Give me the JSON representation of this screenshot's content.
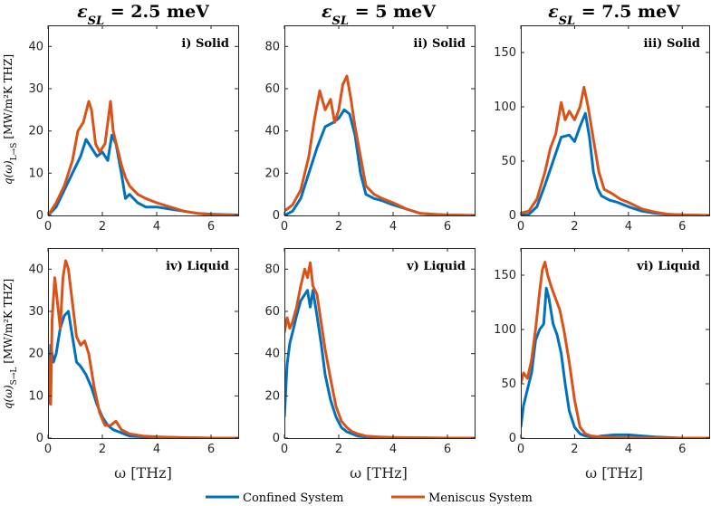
{
  "colors": {
    "confined": "#0072BD",
    "meniscus": "#D95319",
    "axis": "#262626"
  },
  "column_titles": [
    {
      "prefix": "ε",
      "sub": "SL",
      "value": " = 2.5 meV"
    },
    {
      "prefix": "ε",
      "sub": "SL",
      "value": " = 5 meV"
    },
    {
      "prefix": "ε",
      "sub": "SL",
      "value": " = 7.5 meV"
    }
  ],
  "y_labels": {
    "top": {
      "main": "q(ω)",
      "sub": "L→S",
      "unit": "[MW/m²K THZ]"
    },
    "bottom": {
      "main": "q(ω)",
      "sub": "S→L",
      "unit": "[MW/m²K THZ]"
    }
  },
  "x_label": "ω [THz]",
  "legend": {
    "confined": "Confined System",
    "meniscus": "Meniscus System"
  },
  "chart_data": [
    {
      "type": "line",
      "panel": "i) Solid",
      "xlim": [
        0,
        7
      ],
      "ylim": [
        0,
        45
      ],
      "xticks": [
        0,
        2,
        4,
        6
      ],
      "yticks": [
        0,
        10,
        20,
        30,
        40
      ],
      "series": [
        {
          "name": "Confined System",
          "x": [
            0,
            0.3,
            0.6,
            0.9,
            1.2,
            1.4,
            1.6,
            1.8,
            2.0,
            2.2,
            2.35,
            2.5,
            2.7,
            2.85,
            3.0,
            3.3,
            3.6,
            4.0,
            4.5,
            5.0,
            5.5,
            6.0,
            6.5,
            7.0
          ],
          "y": [
            0,
            2,
            6,
            10,
            14,
            18,
            16,
            14,
            15,
            13,
            19,
            17,
            10,
            4,
            5,
            3,
            2,
            2,
            1.5,
            1,
            0.5,
            0.3,
            0.2,
            0.1
          ]
        },
        {
          "name": "Meniscus System",
          "x": [
            0,
            0.3,
            0.6,
            0.9,
            1.1,
            1.3,
            1.5,
            1.6,
            1.75,
            1.9,
            2.1,
            2.3,
            2.4,
            2.55,
            2.7,
            2.85,
            3.0,
            3.3,
            3.6,
            4.0,
            4.5,
            5.0,
            5.5,
            6.0,
            7.0
          ],
          "y": [
            0,
            3,
            7,
            13,
            20,
            22,
            27,
            25,
            17,
            15,
            17,
            27,
            20,
            16,
            12,
            9,
            7,
            5,
            4,
            3,
            2,
            1,
            0.5,
            0.2,
            0
          ]
        }
      ]
    },
    {
      "type": "line",
      "panel": "ii) Solid",
      "xlim": [
        0,
        7
      ],
      "ylim": [
        0,
        90
      ],
      "xticks": [
        0,
        2,
        4,
        6
      ],
      "yticks": [
        0,
        20,
        40,
        60,
        80
      ],
      "series": [
        {
          "name": "Confined System",
          "x": [
            0,
            0.3,
            0.6,
            0.9,
            1.2,
            1.5,
            1.8,
            2.0,
            2.2,
            2.4,
            2.6,
            2.8,
            3.0,
            3.3,
            3.6,
            4.0,
            4.5,
            5.0,
            5.5,
            6.0,
            7.0
          ],
          "y": [
            0,
            2,
            8,
            20,
            32,
            42,
            44,
            46,
            50,
            48,
            38,
            20,
            10,
            8,
            7,
            5,
            3,
            1,
            0.5,
            0.2,
            0
          ]
        },
        {
          "name": "Meniscus System",
          "x": [
            0,
            0.3,
            0.6,
            0.9,
            1.1,
            1.3,
            1.5,
            1.7,
            1.85,
            2.0,
            2.15,
            2.3,
            2.45,
            2.6,
            2.8,
            3.0,
            3.3,
            3.6,
            4.0,
            4.5,
            5.0,
            5.5,
            6.0,
            7.0
          ],
          "y": [
            2,
            5,
            12,
            28,
            45,
            59,
            50,
            55,
            44,
            50,
            62,
            66,
            55,
            42,
            28,
            14,
            10,
            8,
            6,
            3,
            1,
            0.5,
            0.2,
            0
          ]
        }
      ]
    },
    {
      "type": "line",
      "panel": "iii) Solid",
      "xlim": [
        0,
        7
      ],
      "ylim": [
        0,
        175
      ],
      "xticks": [
        0,
        2,
        4,
        6
      ],
      "yticks": [
        0,
        50,
        100,
        150
      ],
      "series": [
        {
          "name": "Confined System",
          "x": [
            0,
            0.3,
            0.6,
            0.9,
            1.2,
            1.5,
            1.8,
            2.0,
            2.2,
            2.4,
            2.55,
            2.7,
            2.85,
            3.0,
            3.3,
            3.6,
            4.0,
            4.5,
            5.0,
            5.5,
            6.0,
            7.0
          ],
          "y": [
            0,
            1,
            8,
            28,
            50,
            72,
            74,
            68,
            82,
            94,
            72,
            40,
            25,
            18,
            14,
            12,
            8,
            4,
            2,
            1,
            0.5,
            0
          ]
        },
        {
          "name": "Meniscus System",
          "x": [
            0,
            0.3,
            0.6,
            0.9,
            1.1,
            1.3,
            1.5,
            1.65,
            1.8,
            2.0,
            2.2,
            2.35,
            2.5,
            2.7,
            2.9,
            3.1,
            3.4,
            3.7,
            4.0,
            4.5,
            5.0,
            5.5,
            6.0,
            7.0
          ],
          "y": [
            2,
            4,
            15,
            40,
            62,
            75,
            104,
            88,
            96,
            88,
            100,
            118,
            100,
            70,
            40,
            24,
            20,
            15,
            12,
            6,
            3,
            1,
            0.5,
            0
          ]
        }
      ]
    },
    {
      "type": "line",
      "panel": "iv) Liquid",
      "xlim": [
        0,
        7
      ],
      "ylim": [
        0,
        45
      ],
      "xticks": [
        0,
        2,
        4,
        6
      ],
      "yticks": [
        0,
        10,
        20,
        30,
        40
      ],
      "series": [
        {
          "name": "Confined System",
          "x": [
            0,
            0.1,
            0.2,
            0.3,
            0.45,
            0.6,
            0.75,
            0.9,
            1.05,
            1.2,
            1.4,
            1.6,
            1.8,
            2.0,
            2.2,
            2.4,
            2.6,
            2.8,
            3.0,
            3.5,
            4.0,
            5.0,
            6.0,
            7.0
          ],
          "y": [
            8,
            22,
            18,
            20,
            26,
            29,
            30,
            24,
            18,
            17,
            15,
            12,
            8,
            5,
            3,
            2,
            1.5,
            1,
            0.5,
            0.3,
            0.2,
            0.1,
            0,
            0
          ]
        },
        {
          "name": "Meniscus System",
          "x": [
            0,
            0.1,
            0.15,
            0.25,
            0.35,
            0.45,
            0.55,
            0.65,
            0.75,
            0.9,
            1.05,
            1.2,
            1.35,
            1.5,
            1.7,
            1.9,
            2.1,
            2.3,
            2.5,
            2.7,
            3.0,
            3.5,
            4.0,
            5.0,
            6.0,
            7.0
          ],
          "y": [
            20,
            8,
            28,
            38,
            32,
            26,
            38,
            42,
            40,
            32,
            24,
            22,
            23,
            20,
            12,
            6,
            3,
            3,
            4,
            2,
            1,
            0.5,
            0.3,
            0.1,
            0,
            0
          ]
        }
      ]
    },
    {
      "type": "line",
      "panel": "v) Liquid",
      "xlim": [
        0,
        7
      ],
      "ylim": [
        0,
        90
      ],
      "xticks": [
        0,
        2,
        4,
        6
      ],
      "yticks": [
        0,
        20,
        40,
        60,
        80
      ],
      "series": [
        {
          "name": "Confined System",
          "x": [
            0,
            0.1,
            0.2,
            0.3,
            0.45,
            0.6,
            0.75,
            0.85,
            0.95,
            1.05,
            1.2,
            1.35,
            1.5,
            1.7,
            1.9,
            2.1,
            2.3,
            2.5,
            2.7,
            3.0,
            3.5,
            4.0,
            5.0,
            6.0,
            7.0
          ],
          "y": [
            10,
            35,
            45,
            50,
            58,
            65,
            68,
            70,
            62,
            70,
            58,
            45,
            30,
            18,
            10,
            5,
            3,
            2,
            1,
            0.5,
            0.3,
            0.2,
            0.1,
            0,
            0
          ]
        },
        {
          "name": "Meniscus System",
          "x": [
            0,
            0.1,
            0.2,
            0.3,
            0.45,
            0.6,
            0.75,
            0.85,
            0.95,
            1.05,
            1.2,
            1.35,
            1.5,
            1.7,
            1.9,
            2.1,
            2.3,
            2.5,
            2.7,
            3.0,
            3.5,
            4.0,
            5.0,
            6.0,
            7.0
          ],
          "y": [
            50,
            57,
            52,
            55,
            62,
            72,
            80,
            76,
            83,
            72,
            68,
            55,
            42,
            28,
            15,
            8,
            5,
            3,
            2,
            1,
            0.5,
            0.3,
            0.1,
            0,
            0
          ]
        }
      ]
    },
    {
      "type": "line",
      "panel": "vi) Liquid",
      "xlim": [
        0,
        7
      ],
      "ylim": [
        0,
        175
      ],
      "xticks": [
        0,
        2,
        4,
        6
      ],
      "yticks": [
        0,
        50,
        100,
        150
      ],
      "series": [
        {
          "name": "Confined System",
          "x": [
            0,
            0.1,
            0.25,
            0.4,
            0.55,
            0.7,
            0.85,
            0.95,
            1.05,
            1.2,
            1.35,
            1.5,
            1.65,
            1.8,
            2.0,
            2.2,
            2.4,
            2.6,
            2.8,
            3.0,
            3.5,
            4.0,
            4.5,
            5.0,
            6.0,
            7.0
          ],
          "y": [
            10,
            30,
            45,
            60,
            90,
            100,
            105,
            138,
            128,
            105,
            95,
            78,
            50,
            25,
            10,
            4,
            2,
            1,
            1,
            2,
            3,
            3,
            2,
            1,
            0,
            0
          ]
        },
        {
          "name": "Meniscus System",
          "x": [
            0,
            0.1,
            0.25,
            0.4,
            0.55,
            0.7,
            0.8,
            0.9,
            1.0,
            1.15,
            1.3,
            1.45,
            1.6,
            1.8,
            2.0,
            2.2,
            2.4,
            2.6,
            3.0,
            3.5,
            4.0,
            5.0,
            6.0,
            7.0
          ],
          "y": [
            50,
            60,
            55,
            72,
            100,
            135,
            155,
            162,
            150,
            138,
            128,
            118,
            100,
            70,
            35,
            10,
            4,
            2,
            1,
            0.5,
            0.3,
            0.1,
            0,
            0
          ]
        }
      ]
    }
  ]
}
